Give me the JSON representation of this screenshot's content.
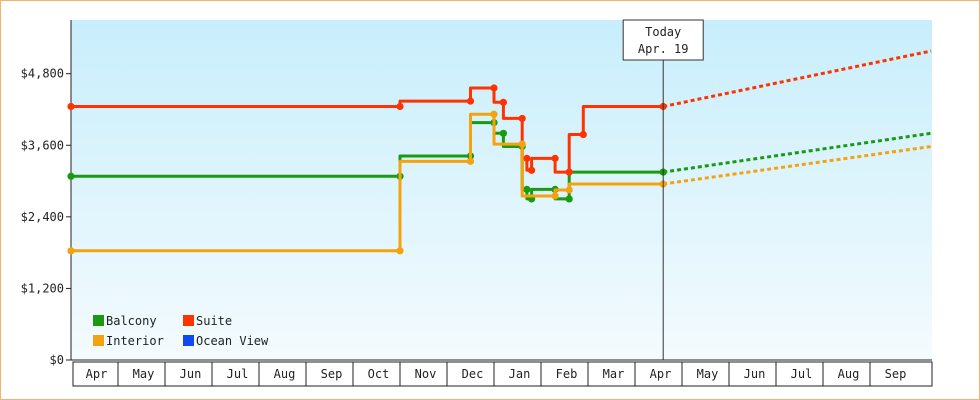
{
  "chart_data": {
    "type": "line",
    "y_axis": {
      "ticks": [
        0,
        1200,
        2400,
        3600,
        4800
      ],
      "tick_labels": [
        "$0",
        "$1,200",
        "$2,400",
        "$3,600",
        "$4,800"
      ],
      "range": [
        0,
        5700
      ]
    },
    "x_axis": {
      "months": [
        "Apr",
        "May",
        "Jun",
        "Jul",
        "Aug",
        "Sep",
        "Oct",
        "Nov",
        "Dec",
        "Jan",
        "Feb",
        "Mar",
        "Apr",
        "May",
        "Jun",
        "Jul",
        "Aug",
        "Sep"
      ],
      "range_months": [
        0,
        18.3
      ]
    },
    "today_marker": {
      "line1": "Today",
      "line2": "Apr. 19",
      "x_month": 12.6
    },
    "grid": false,
    "legend_position": "bottom-left",
    "series": [
      {
        "name": "Balcony",
        "color": "#1a9a10",
        "points": [
          [
            0,
            3080
          ],
          [
            7.0,
            3080
          ],
          [
            7.0,
            3420
          ],
          [
            8.5,
            3420
          ],
          [
            8.5,
            3980
          ],
          [
            9.0,
            3980
          ],
          [
            9.0,
            3800
          ],
          [
            9.2,
            3800
          ],
          [
            9.2,
            3580
          ],
          [
            9.6,
            3580
          ],
          [
            9.6,
            2860
          ],
          [
            9.7,
            2860
          ],
          [
            9.7,
            2700
          ],
          [
            9.8,
            2700
          ],
          [
            9.8,
            2860
          ],
          [
            10.3,
            2860
          ],
          [
            10.3,
            2700
          ],
          [
            10.6,
            2700
          ],
          [
            10.6,
            3150
          ],
          [
            12.6,
            3150
          ]
        ],
        "forecast": [
          [
            12.6,
            3150
          ],
          [
            18.3,
            3800
          ]
        ]
      },
      {
        "name": "Suite",
        "color": "#ff3300",
        "points": [
          [
            0,
            4250
          ],
          [
            7.0,
            4250
          ],
          [
            7.0,
            4340
          ],
          [
            8.5,
            4340
          ],
          [
            8.5,
            4560
          ],
          [
            9.0,
            4560
          ],
          [
            9.0,
            4320
          ],
          [
            9.2,
            4320
          ],
          [
            9.2,
            4050
          ],
          [
            9.6,
            4050
          ],
          [
            9.6,
            3380
          ],
          [
            9.7,
            3380
          ],
          [
            9.7,
            3180
          ],
          [
            9.8,
            3180
          ],
          [
            9.8,
            3380
          ],
          [
            10.3,
            3380
          ],
          [
            10.3,
            3150
          ],
          [
            10.6,
            3150
          ],
          [
            10.6,
            3780
          ],
          [
            10.9,
            3780
          ],
          [
            10.9,
            4250
          ],
          [
            12.6,
            4250
          ]
        ],
        "forecast": [
          [
            12.6,
            4250
          ],
          [
            18.3,
            5180
          ]
        ]
      },
      {
        "name": "Interior",
        "color": "#f5a20f",
        "points": [
          [
            0,
            1830
          ],
          [
            7.0,
            1830
          ],
          [
            7.0,
            3330
          ],
          [
            8.5,
            3330
          ],
          [
            8.5,
            4120
          ],
          [
            9.0,
            4120
          ],
          [
            9.0,
            3620
          ],
          [
            9.6,
            3620
          ],
          [
            9.6,
            2750
          ],
          [
            10.3,
            2750
          ],
          [
            10.3,
            2850
          ],
          [
            10.6,
            2850
          ],
          [
            10.6,
            2950
          ],
          [
            12.6,
            2950
          ]
        ],
        "forecast": [
          [
            12.6,
            2950
          ],
          [
            18.3,
            3580
          ]
        ]
      },
      {
        "name": "Ocean View",
        "color": "#1049f0",
        "points": [],
        "forecast": []
      }
    ],
    "legend": [
      {
        "label": "Balcony",
        "color": "#1a9a10"
      },
      {
        "label": "Suite",
        "color": "#ff3300"
      },
      {
        "label": "Interior",
        "color": "#f5a20f"
      },
      {
        "label": "Ocean View",
        "color": "#1049f0"
      }
    ]
  }
}
